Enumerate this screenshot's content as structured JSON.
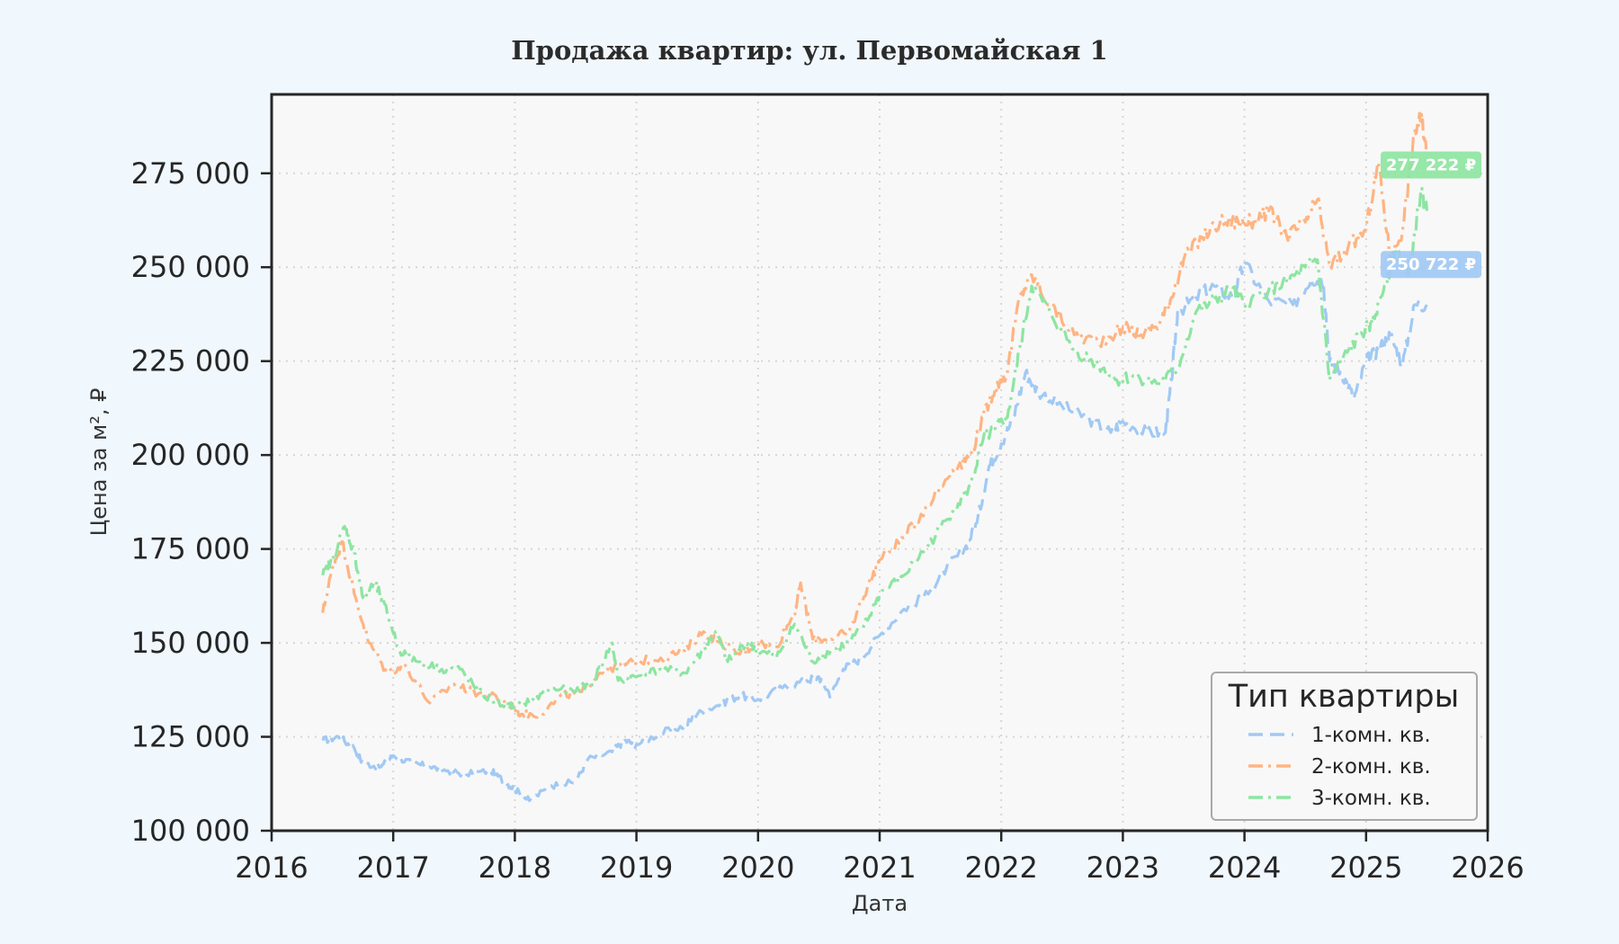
{
  "colors": {
    "page_bg": "#f0f7fd",
    "plot_bg": "#f8f8f8",
    "grid": "#d6d6d6",
    "axis": "#262626",
    "series_1": "#a1c9f4",
    "series_2": "#ffb482",
    "series_3": "#8de5a1"
  },
  "chart_data": {
    "type": "line",
    "title": "Продажа квартир: ул. Первомайская 1",
    "xlabel": "Дата",
    "ylabel": "Цена за м², ₽",
    "xlim": [
      2016,
      2026
    ],
    "ylim": [
      100000,
      296000
    ],
    "x_ticks": [
      "2016",
      "2017",
      "2018",
      "2019",
      "2020",
      "2021",
      "2022",
      "2023",
      "2024",
      "2025",
      "2026"
    ],
    "y_ticks": [
      "100 000",
      "125 000",
      "150 000",
      "175 000",
      "200 000",
      "225 000",
      "250 000",
      "275 000"
    ],
    "grid": true,
    "legend": {
      "title": "Тип квартиры",
      "position": "bottom-right",
      "entries": [
        "1-комн. кв.",
        "2-комн. кв.",
        "3-комн. кв."
      ]
    },
    "series": [
      {
        "name": "1-комн. кв.",
        "style": "dashed",
        "x": [
          2016.42,
          2016.55,
          2016.68,
          2016.75,
          2016.9,
          2017.0,
          2017.15,
          2017.3,
          2017.45,
          2017.6,
          2017.8,
          2017.92,
          2018.0,
          2018.12,
          2018.3,
          2018.5,
          2018.6,
          2018.8,
          2018.9,
          2019.0,
          2019.2,
          2019.4,
          2019.5,
          2019.7,
          2019.85,
          2020.0,
          2020.2,
          2020.4,
          2020.5,
          2020.6,
          2020.7,
          2020.85,
          2021.0,
          2021.2,
          2021.4,
          2021.55,
          2021.7,
          2021.8,
          2021.9,
          2022.0,
          2022.1,
          2022.2,
          2022.3,
          2022.5,
          2022.7,
          2022.9,
          2023.0,
          2023.2,
          2023.35,
          2023.4,
          2023.45,
          2023.6,
          2023.75,
          2023.9,
          2024.0,
          2024.2,
          2024.4,
          2024.55,
          2024.65,
          2024.7,
          2024.8,
          2024.9,
          2025.0,
          2025.1,
          2025.2,
          2025.3,
          2025.4,
          2025.5
        ],
        "values": [
          124000,
          125000,
          122000,
          118000,
          117000,
          120000,
          118000,
          117000,
          116000,
          115000,
          116000,
          113000,
          111000,
          108000,
          112000,
          113000,
          119000,
          121000,
          124000,
          123000,
          126000,
          128000,
          131000,
          134000,
          136000,
          135000,
          138000,
          140000,
          141000,
          136000,
          143000,
          146000,
          152000,
          159000,
          163000,
          170000,
          175000,
          182000,
          197000,
          203000,
          210000,
          222000,
          217000,
          213000,
          210000,
          206000,
          209000,
          206000,
          206000,
          220000,
          238000,
          242000,
          245000,
          242000,
          251000,
          241000,
          240000,
          247000,
          246000,
          225000,
          222000,
          215000,
          225000,
          228000,
          232000,
          224000,
          240000,
          240000
        ]
      },
      {
        "name": "2-комн. кв.",
        "style": "dashdot",
        "x": [
          2016.42,
          2016.5,
          2016.58,
          2016.68,
          2016.8,
          2016.95,
          2017.1,
          2017.3,
          2017.5,
          2017.65,
          2017.8,
          2017.95,
          2018.05,
          2018.2,
          2018.4,
          2018.55,
          2018.7,
          2018.85,
          2019.0,
          2019.2,
          2019.4,
          2019.55,
          2019.7,
          2019.85,
          2020.0,
          2020.15,
          2020.3,
          2020.35,
          2020.45,
          2020.6,
          2020.75,
          2020.9,
          2021.0,
          2021.2,
          2021.4,
          2021.6,
          2021.75,
          2021.85,
          2021.95,
          2022.05,
          2022.15,
          2022.25,
          2022.4,
          2022.6,
          2022.8,
          2023.0,
          2023.15,
          2023.3,
          2023.4,
          2023.5,
          2023.65,
          2023.8,
          2023.95,
          2024.05,
          2024.2,
          2024.35,
          2024.5,
          2024.6,
          2024.7,
          2024.85,
          2025.0,
          2025.1,
          2025.2,
          2025.3,
          2025.4,
          2025.45,
          2025.5
        ],
        "values": [
          158000,
          170000,
          177000,
          163000,
          150000,
          142000,
          144000,
          134000,
          139000,
          137000,
          136000,
          134000,
          131000,
          131000,
          136000,
          137000,
          142000,
          144000,
          145000,
          146000,
          148000,
          153000,
          150000,
          147000,
          150000,
          149000,
          158000,
          166000,
          151000,
          151000,
          153000,
          165000,
          172000,
          178000,
          187000,
          196000,
          200000,
          210000,
          218000,
          222000,
          242000,
          248000,
          240000,
          232000,
          230000,
          234000,
          232000,
          235000,
          242000,
          252000,
          258000,
          262000,
          262000,
          262000,
          265000,
          258000,
          262000,
          268000,
          250000,
          255000,
          260000,
          278000,
          252000,
          260000,
          286000,
          290000,
          280000
        ]
      },
      {
        "name": "3-комн. кв.",
        "style": "dashdot",
        "x": [
          2016.42,
          2016.5,
          2016.6,
          2016.68,
          2016.75,
          2016.85,
          2016.95,
          2017.05,
          2017.2,
          2017.4,
          2017.55,
          2017.7,
          2017.85,
          2018.0,
          2018.15,
          2018.3,
          2018.5,
          2018.65,
          2018.8,
          2018.85,
          2019.0,
          2019.2,
          2019.4,
          2019.55,
          2019.65,
          2019.75,
          2019.9,
          2020.0,
          2020.15,
          2020.3,
          2020.45,
          2020.6,
          2020.75,
          2020.9,
          2021.0,
          2021.2,
          2021.4,
          2021.6,
          2021.75,
          2021.85,
          2021.95,
          2022.05,
          2022.15,
          2022.25,
          2022.4,
          2022.6,
          2022.8,
          2022.95,
          2023.1,
          2023.3,
          2023.45,
          2023.6,
          2023.75,
          2023.9,
          2024.0,
          2024.2,
          2024.35,
          2024.5,
          2024.6,
          2024.7,
          2024.8,
          2024.95,
          2025.05,
          2025.15,
          2025.25,
          2025.35,
          2025.45,
          2025.5
        ],
        "values": [
          168000,
          172000,
          181000,
          174000,
          162000,
          166000,
          158000,
          148000,
          145000,
          143000,
          143000,
          137000,
          134000,
          133000,
          135000,
          138000,
          137000,
          140000,
          150000,
          140000,
          141000,
          143000,
          142000,
          148000,
          153000,
          145000,
          150000,
          148000,
          146000,
          155000,
          145000,
          148000,
          150000,
          156000,
          163000,
          168000,
          176000,
          185000,
          192000,
          204000,
          207000,
          210000,
          228000,
          245000,
          238000,
          228000,
          224000,
          220000,
          221000,
          219000,
          223000,
          238000,
          241000,
          244000,
          240000,
          244000,
          246000,
          250000,
          252000,
          220000,
          225000,
          232000,
          235000,
          245000,
          255000,
          248000,
          270000,
          265000
        ]
      }
    ],
    "annotations": [
      {
        "label": "277 222 ₽",
        "series": "3-комн. кв.",
        "y": 277222
      },
      {
        "label": "250 722 ₽",
        "series": "1-комн. кв.",
        "y": 250722
      }
    ]
  }
}
